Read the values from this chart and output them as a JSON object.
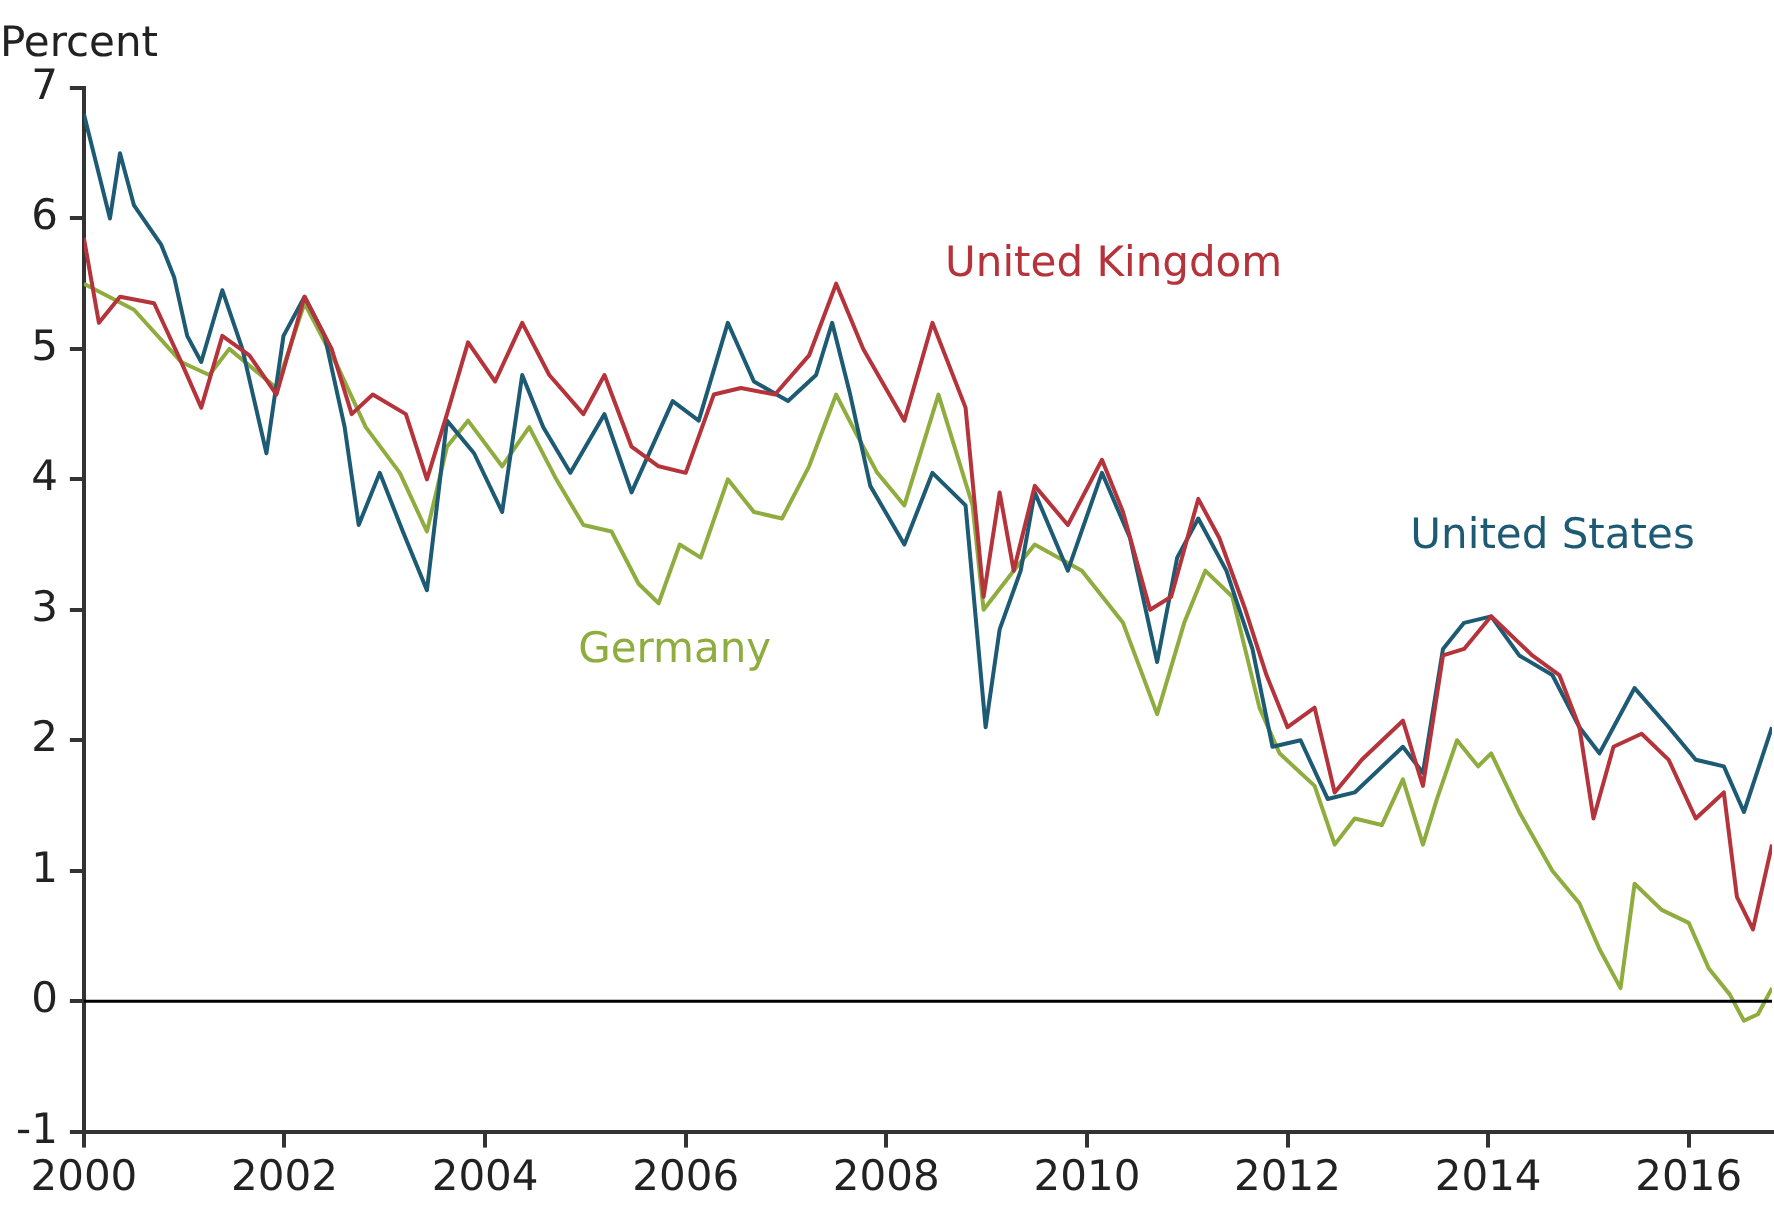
{
  "chart_data": {
    "type": "line",
    "ylabel": "Percent",
    "xlim": [
      2000,
      2016.83
    ],
    "xticks": [
      2000,
      2002,
      2004,
      2006,
      2008,
      2010,
      2012,
      2014,
      2016
    ],
    "ylim": [
      -1,
      7
    ],
    "yticks": [
      -1,
      0,
      1,
      2,
      3,
      4,
      5,
      6,
      7
    ],
    "grid": false,
    "legend": false,
    "marker": "none",
    "line_style": "solid",
    "ref_lines": [
      {
        "axis": "y",
        "value": 0,
        "color": "#000000"
      }
    ],
    "series": [
      {
        "name": "United Kingdom",
        "color": "#b5333a",
        "x": [
          2000,
          2000.15,
          2000.36,
          2000.7,
          2000.97,
          2001.17,
          2001.38,
          2001.65,
          2001.92,
          2002.2,
          2002.47,
          2002.67,
          2002.88,
          2003.21,
          2003.42,
          2003.62,
          2003.83,
          2004.1,
          2004.37,
          2004.64,
          2004.98,
          2005.19,
          2005.46,
          2005.73,
          2006.0,
          2006.28,
          2006.55,
          2006.89,
          2007.23,
          2007.5,
          2007.77,
          2008.18,
          2008.46,
          2008.79,
          2008.97,
          2009.13,
          2009.27,
          2009.48,
          2009.81,
          2010.15,
          2010.36,
          2010.63,
          2010.84,
          2011.11,
          2011.32,
          2011.58,
          2011.79,
          2012.0,
          2012.27,
          2012.47,
          2012.74,
          2013.15,
          2013.35,
          2013.55,
          2013.76,
          2014.03,
          2014.44,
          2014.71,
          2014.91,
          2015.05,
          2015.25,
          2015.53,
          2015.8,
          2016.07,
          2016.35,
          2016.48,
          2016.64,
          2016.83
        ],
        "values": [
          5.85,
          5.2,
          5.4,
          5.35,
          4.9,
          4.55,
          5.1,
          4.95,
          4.65,
          5.4,
          5.0,
          4.5,
          4.65,
          4.5,
          4.0,
          4.5,
          5.05,
          4.75,
          5.2,
          4.8,
          4.5,
          4.8,
          4.25,
          4.1,
          4.05,
          4.65,
          4.7,
          4.65,
          4.95,
          5.5,
          5.0,
          4.45,
          5.2,
          4.55,
          3.1,
          3.9,
          3.3,
          3.95,
          3.65,
          4.15,
          3.75,
          3.0,
          3.1,
          3.85,
          3.55,
          3.0,
          2.5,
          2.1,
          2.25,
          1.6,
          1.85,
          2.15,
          1.65,
          2.65,
          2.7,
          2.95,
          2.65,
          2.5,
          2.1,
          1.4,
          1.95,
          2.05,
          1.85,
          1.4,
          1.6,
          0.8,
          0.55,
          1.2
        ]
      },
      {
        "name": "United States",
        "color": "#1d5a73",
        "x": [
          2000,
          2000.26,
          2000.36,
          2000.5,
          2000.77,
          2000.9,
          2001.03,
          2001.17,
          2001.38,
          2001.58,
          2001.82,
          2001.99,
          2002.2,
          2002.4,
          2002.6,
          2002.74,
          2002.95,
          2003.18,
          2003.42,
          2003.62,
          2003.89,
          2004.17,
          2004.37,
          2004.58,
          2004.85,
          2005.19,
          2005.46,
          2005.87,
          2006.13,
          2006.42,
          2006.68,
          2007.02,
          2007.3,
          2007.46,
          2007.64,
          2007.84,
          2008.18,
          2008.46,
          2008.79,
          2008.99,
          2009.13,
          2009.34,
          2009.48,
          2009.81,
          2010.15,
          2010.43,
          2010.7,
          2010.9,
          2011.11,
          2011.39,
          2011.65,
          2011.85,
          2012.13,
          2012.4,
          2012.67,
          2013.15,
          2013.35,
          2013.55,
          2013.76,
          2014.03,
          2014.31,
          2014.64,
          2014.91,
          2015.11,
          2015.46,
          2015.8,
          2016.07,
          2016.35,
          2016.55,
          2016.83
        ],
        "values": [
          6.8,
          6.0,
          6.5,
          6.1,
          5.8,
          5.55,
          5.1,
          4.9,
          5.45,
          5.0,
          4.2,
          5.1,
          5.4,
          5.1,
          4.4,
          3.65,
          4.05,
          3.6,
          3.15,
          4.45,
          4.2,
          3.75,
          4.8,
          4.4,
          4.05,
          4.5,
          3.9,
          4.6,
          4.45,
          5.2,
          4.75,
          4.6,
          4.8,
          5.2,
          4.65,
          3.95,
          3.5,
          4.05,
          3.8,
          2.1,
          2.85,
          3.3,
          3.9,
          3.3,
          4.05,
          3.55,
          2.6,
          3.4,
          3.7,
          3.3,
          2.7,
          1.95,
          2.0,
          1.55,
          1.6,
          1.95,
          1.75,
          2.7,
          2.9,
          2.95,
          2.65,
          2.5,
          2.1,
          1.9,
          2.4,
          2.1,
          1.85,
          1.8,
          1.45,
          2.1
        ]
      },
      {
        "name": "Germany",
        "color": "#8fac3e",
        "x": [
          2000,
          2000.5,
          2000.97,
          2001.25,
          2001.45,
          2001.92,
          2002.2,
          2002.54,
          2002.81,
          2003.15,
          2003.42,
          2003.62,
          2003.83,
          2004.17,
          2004.44,
          2004.71,
          2004.98,
          2005.26,
          2005.53,
          2005.73,
          2005.94,
          2006.15,
          2006.42,
          2006.68,
          2006.96,
          2007.23,
          2007.5,
          2007.7,
          2007.91,
          2008.18,
          2008.52,
          2008.86,
          2008.97,
          2009.27,
          2009.48,
          2009.95,
          2010.36,
          2010.7,
          2010.97,
          2011.18,
          2011.45,
          2011.72,
          2011.92,
          2012.27,
          2012.47,
          2012.67,
          2012.94,
          2013.15,
          2013.35,
          2013.49,
          2013.69,
          2013.9,
          2014.03,
          2014.31,
          2014.64,
          2014.91,
          2015.11,
          2015.32,
          2015.46,
          2015.73,
          2016.0,
          2016.2,
          2016.41,
          2016.55,
          2016.69,
          2016.83
        ],
        "values": [
          5.5,
          5.3,
          4.9,
          4.8,
          5.0,
          4.7,
          5.35,
          4.85,
          4.4,
          4.05,
          3.6,
          4.25,
          4.45,
          4.1,
          4.4,
          4.0,
          3.65,
          3.6,
          3.2,
          3.05,
          3.5,
          3.4,
          4.0,
          3.75,
          3.7,
          4.1,
          4.65,
          4.35,
          4.05,
          3.8,
          4.65,
          3.8,
          3.0,
          3.3,
          3.5,
          3.3,
          2.9,
          2.2,
          2.9,
          3.3,
          3.1,
          2.25,
          1.9,
          1.65,
          1.2,
          1.4,
          1.35,
          1.7,
          1.2,
          1.55,
          2.0,
          1.8,
          1.9,
          1.45,
          1.0,
          0.75,
          0.4,
          0.1,
          0.9,
          0.7,
          0.6,
          0.25,
          0.05,
          -0.15,
          -0.1,
          0.1
        ]
      }
    ]
  }
}
